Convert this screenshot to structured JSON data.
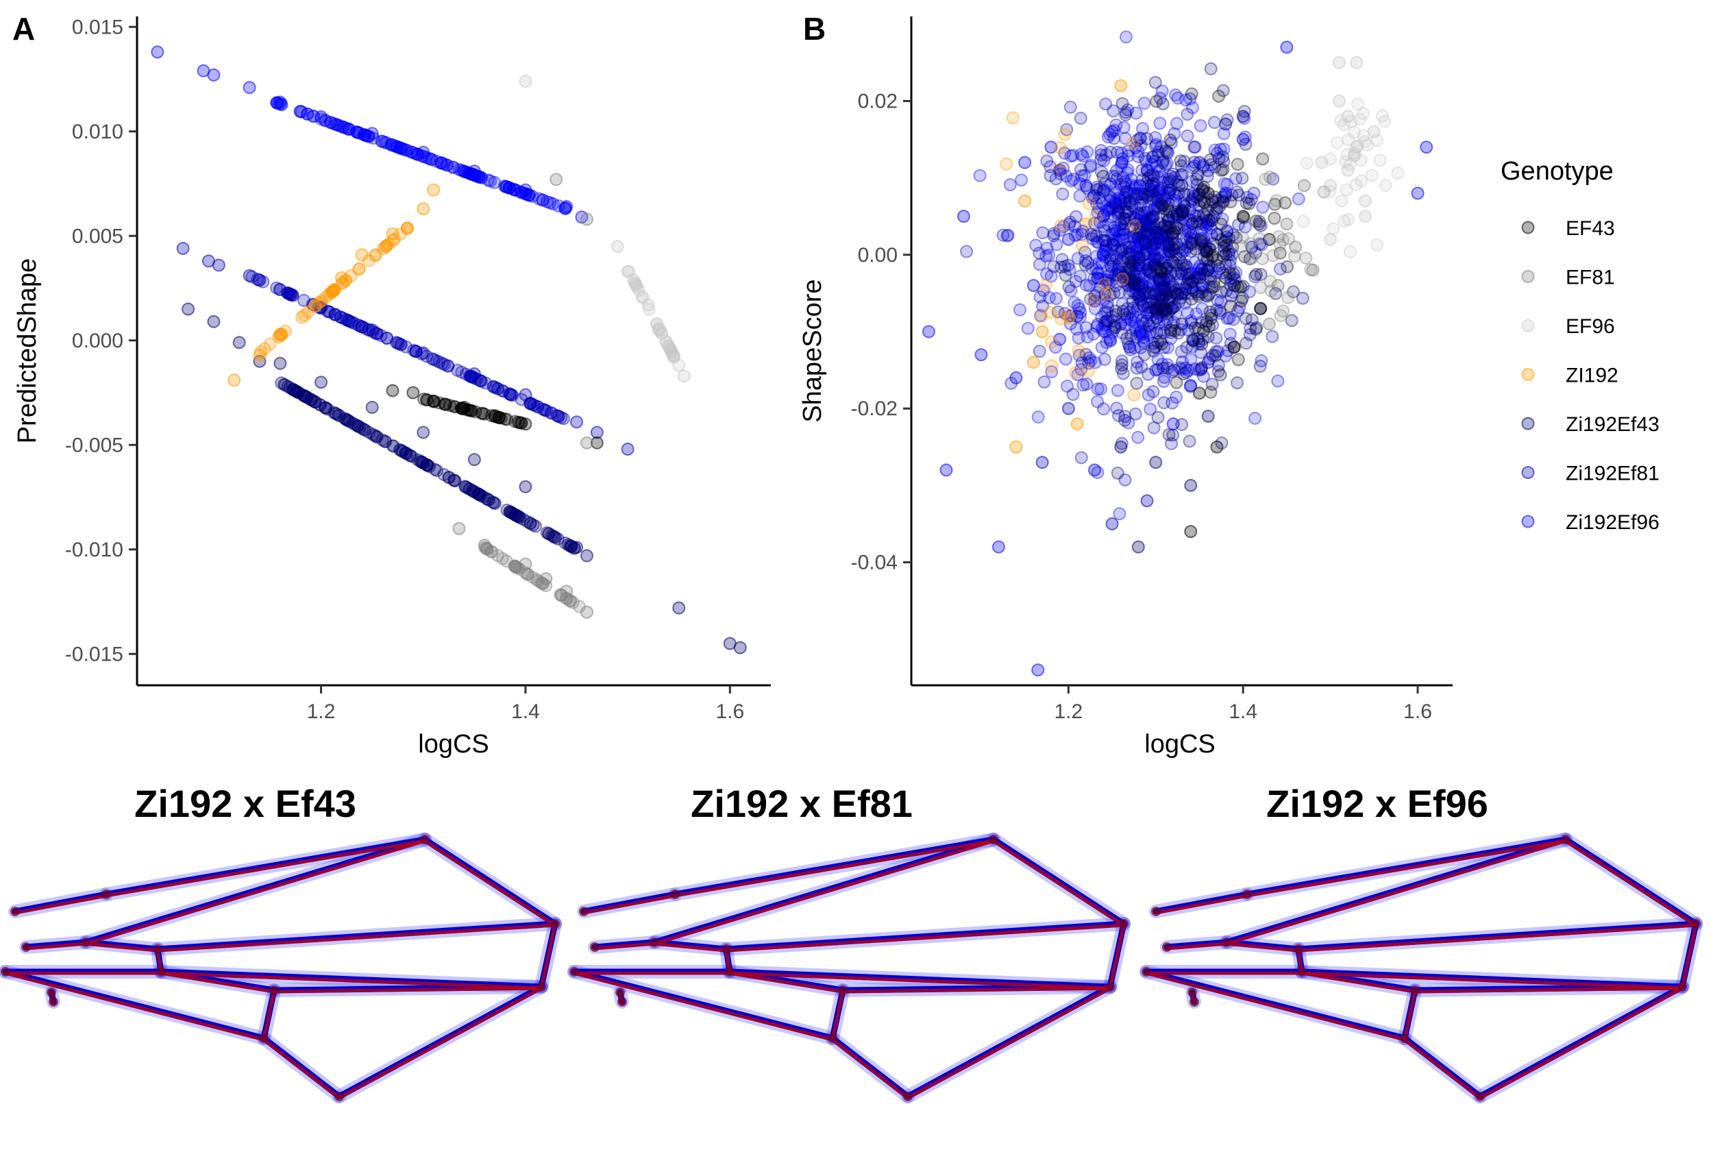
{
  "panel_labels": {
    "a": "A",
    "b": "B"
  },
  "legend": {
    "title": "Genotype",
    "items": [
      {
        "label": "EF43",
        "color": "#000000"
      },
      {
        "label": "EF81",
        "color": "#808080"
      },
      {
        "label": "EF96",
        "color": "#c8c8c8"
      },
      {
        "label": "ZI192",
        "color": "#ff9900"
      },
      {
        "label": "Zi192Ef43",
        "color": "#00006e"
      },
      {
        "label": "Zi192Ef81",
        "color": "#0000b4"
      },
      {
        "label": "Zi192Ef96",
        "color": "#0000ff"
      }
    ]
  },
  "wing_titles": [
    "Zi192 x Ef43",
    "Zi192 x Ef81",
    "Zi192 x Ef96"
  ],
  "chart_data": [
    {
      "panel": "A",
      "type": "scatter",
      "xlabel": "logCS",
      "ylabel": "PredictedShape",
      "xlim": [
        1.02,
        1.64
      ],
      "ylim": [
        -0.0165,
        0.0155
      ],
      "xticks": [
        1.2,
        1.4,
        1.6
      ],
      "xtick_labels": [
        "1.2",
        "1.4",
        "1.6"
      ],
      "yticks": [
        -0.015,
        -0.01,
        -0.005,
        0,
        0.005,
        0.01,
        0.015
      ],
      "ytick_labels": [
        "-0.015",
        "-0.010",
        "-0.005",
        "0.000",
        "0.005",
        "0.010",
        "0.015"
      ],
      "series": [
        {
          "name": "Zi192Ef96",
          "color": "#0000ff",
          "points": [
            [
              1.04,
              0.0138
            ],
            [
              1.085,
              0.0129
            ],
            [
              1.095,
              0.0127
            ],
            [
              1.13,
              0.0121
            ],
            [
              1.16,
              0.0114
            ],
            [
              1.2,
              0.0107
            ],
            [
              1.25,
              0.0099
            ],
            [
              1.3,
              0.009
            ],
            [
              1.35,
              0.0081
            ],
            [
              1.4,
              0.0072
            ],
            [
              1.44,
              0.0064
            ],
            [
              1.455,
              0.0059
            ]
          ]
        },
        {
          "name": "Zi192Ef81",
          "color": "#0000b4",
          "points": [
            [
              1.065,
              0.0044
            ],
            [
              1.09,
              0.0038
            ],
            [
              1.1,
              0.0036
            ],
            [
              1.13,
              0.0031
            ],
            [
              1.17,
              0.0022
            ],
            [
              1.2,
              0.0016
            ],
            [
              1.25,
              0.0005
            ],
            [
              1.3,
              -0.0006
            ],
            [
              1.35,
              -0.0016
            ],
            [
              1.4,
              -0.0026
            ],
            [
              1.45,
              -0.0039
            ],
            [
              1.47,
              -0.0044
            ],
            [
              1.5,
              -0.0052
            ]
          ]
        },
        {
          "name": "Zi192Ef43",
          "color": "#00006e",
          "points": [
            [
              1.07,
              0.0015
            ],
            [
              1.095,
              0.0009
            ],
            [
              1.12,
              -0.0001
            ],
            [
              1.14,
              -0.001
            ],
            [
              1.16,
              -0.0011
            ],
            [
              1.2,
              -0.002
            ],
            [
              1.25,
              -0.0032
            ],
            [
              1.3,
              -0.0044
            ],
            [
              1.35,
              -0.0057
            ],
            [
              1.4,
              -0.007
            ],
            [
              1.45,
              -0.0099
            ],
            [
              1.46,
              -0.0103
            ],
            [
              1.55,
              -0.0128
            ],
            [
              1.6,
              -0.0145
            ],
            [
              1.61,
              -0.0147
            ]
          ]
        },
        {
          "name": "ZI192",
          "color": "#ff9900",
          "points": [
            [
              1.115,
              -0.0019
            ],
            [
              1.14,
              -0.0007
            ],
            [
              1.16,
              0.0003
            ],
            [
              1.2,
              0.0018
            ],
            [
              1.22,
              0.003
            ],
            [
              1.24,
              0.0041
            ],
            [
              1.27,
              0.0051
            ],
            [
              1.3,
              0.0063
            ],
            [
              1.31,
              0.0072
            ]
          ]
        },
        {
          "name": "EF43",
          "color": "#000000",
          "points": [
            [
              1.27,
              -0.0024
            ],
            [
              1.29,
              -0.0025
            ],
            [
              1.31,
              -0.0029
            ],
            [
              1.34,
              -0.0032
            ],
            [
              1.37,
              -0.0036
            ],
            [
              1.4,
              -0.004
            ],
            [
              1.47,
              -0.0049
            ]
          ]
        },
        {
          "name": "EF81",
          "color": "#808080",
          "points": [
            [
              1.335,
              -0.009
            ],
            [
              1.36,
              -0.0098
            ],
            [
              1.4,
              -0.0107
            ],
            [
              1.42,
              -0.0114
            ],
            [
              1.44,
              -0.012
            ],
            [
              1.46,
              -0.013
            ],
            [
              1.43,
              0.0077
            ],
            [
              1.46,
              0.0058
            ],
            [
              1.46,
              -0.0049
            ]
          ]
        },
        {
          "name": "EF96",
          "color": "#c8c8c8",
          "points": [
            [
              1.4,
              0.0124
            ],
            [
              1.49,
              0.0045
            ],
            [
              1.5,
              0.0033
            ],
            [
              1.52,
              0.0017
            ],
            [
              1.53,
              0.0005
            ],
            [
              1.545,
              -0.0008
            ],
            [
              1.555,
              -0.0017
            ]
          ]
        }
      ]
    },
    {
      "panel": "B",
      "type": "scatter",
      "xlabel": "logCS",
      "ylabel": "ShapeScore",
      "xlim": [
        1.02,
        1.64
      ],
      "ylim": [
        -0.056,
        0.031
      ],
      "xticks": [
        1.2,
        1.4,
        1.6
      ],
      "xtick_labels": [
        "1.2",
        "1.4",
        "1.6"
      ],
      "yticks": [
        -0.04,
        -0.02,
        0,
        0.02
      ],
      "ytick_labels": [
        "-0.04",
        "-0.02",
        "0.00",
        "0.02"
      ],
      "series": [
        {
          "name": "Zi192Ef96",
          "color": "#0000ff",
          "points": [
            [
              1.27,
              0.001
            ],
            [
              1.26,
              0.004
            ],
            [
              1.29,
              -0.002
            ],
            [
              1.25,
              0.006
            ],
            [
              1.3,
              0.003
            ],
            [
              1.28,
              -0.004
            ],
            [
              1.24,
              0.0
            ],
            [
              1.31,
              -0.001
            ],
            [
              1.27,
              0.008
            ],
            [
              1.23,
              -0.006
            ],
            [
              1.32,
              0.005
            ],
            [
              1.29,
              0.011
            ],
            [
              1.22,
              0.009
            ],
            [
              1.33,
              -0.005
            ],
            [
              1.26,
              -0.009
            ],
            [
              1.2,
              0.002
            ],
            [
              1.35,
              0.012
            ],
            [
              1.19,
              -0.011
            ],
            [
              1.36,
              -0.014
            ],
            [
              1.18,
              0.014
            ],
            [
              1.3,
              -0.015
            ],
            [
              1.25,
              0.016
            ],
            [
              1.16,
              -0.004
            ],
            [
              1.38,
              0.008
            ],
            [
              1.4,
              0.015
            ],
            [
              1.15,
              0.012
            ],
            [
              1.32,
              -0.022
            ],
            [
              1.14,
              -0.016
            ],
            [
              1.45,
              0.027
            ],
            [
              1.08,
              0.005
            ],
            [
              1.1,
              -0.013
            ],
            [
              1.04,
              -0.01
            ],
            [
              1.06,
              -0.028
            ],
            [
              1.12,
              -0.038
            ],
            [
              1.165,
              -0.054
            ],
            [
              1.61,
              0.014
            ],
            [
              1.6,
              0.008
            ]
          ]
        },
        {
          "name": "Zi192Ef81",
          "color": "#0000b4",
          "points": [
            [
              1.28,
              0.002
            ],
            [
              1.3,
              -0.006
            ],
            [
              1.24,
              0.005
            ],
            [
              1.33,
              0.009
            ],
            [
              1.21,
              -0.008
            ],
            [
              1.36,
              0.004
            ],
            [
              1.27,
              -0.012
            ],
            [
              1.19,
              0.011
            ],
            [
              1.34,
              -0.017
            ],
            [
              1.2,
              -0.02
            ],
            [
              1.23,
              -0.028
            ],
            [
              1.29,
              -0.032
            ],
            [
              1.25,
              -0.035
            ],
            [
              1.41,
              0.001
            ],
            [
              1.17,
              -0.027
            ]
          ]
        },
        {
          "name": "Zi192Ef43",
          "color": "#00006e",
          "points": [
            [
              1.31,
              0.003
            ],
            [
              1.35,
              -0.003
            ],
            [
              1.37,
              0.006
            ],
            [
              1.33,
              -0.009
            ],
            [
              1.39,
              -0.004
            ],
            [
              1.38,
              0.017
            ],
            [
              1.4,
              0.018
            ],
            [
              1.36,
              -0.021
            ],
            [
              1.3,
              -0.027
            ],
            [
              1.26,
              -0.025
            ],
            [
              1.34,
              -0.03
            ],
            [
              1.42,
              -0.007
            ],
            [
              1.28,
              -0.038
            ]
          ]
        },
        {
          "name": "ZI192",
          "color": "#ff9900",
          "points": [
            [
              1.15,
              0.007
            ],
            [
              1.17,
              -0.01
            ],
            [
              1.19,
              0.011
            ],
            [
              1.21,
              -0.022
            ],
            [
              1.22,
              0.004
            ],
            [
              1.16,
              -0.014
            ],
            [
              1.14,
              -0.025
            ],
            [
              1.26,
              0.022
            ],
            [
              1.2,
              -0.008
            ]
          ]
        },
        {
          "name": "EF43",
          "color": "#000000",
          "points": [
            [
              1.36,
              0.008
            ],
            [
              1.38,
              -0.003
            ],
            [
              1.4,
              0.005
            ],
            [
              1.42,
              -0.007
            ],
            [
              1.35,
              -0.018
            ],
            [
              1.37,
              -0.025
            ],
            [
              1.39,
              -0.012
            ],
            [
              1.43,
              0.002
            ],
            [
              1.34,
              -0.036
            ]
          ]
        },
        {
          "name": "EF81",
          "color": "#808080",
          "points": [
            [
              1.45,
              0.004
            ],
            [
              1.44,
              -0.004
            ],
            [
              1.47,
              0.009
            ],
            [
              1.43,
              -0.009
            ],
            [
              1.46,
              0.001
            ],
            [
              1.48,
              -0.002
            ]
          ]
        },
        {
          "name": "EF96",
          "color": "#c8c8c8",
          "points": [
            [
              1.51,
              0.02
            ],
            [
              1.52,
              0.011
            ],
            [
              1.53,
              0.014
            ],
            [
              1.54,
              0.007
            ],
            [
              1.5,
              0.009
            ],
            [
              1.55,
              0.016
            ],
            [
              1.53,
              0.025
            ],
            [
              1.51,
              0.025
            ],
            [
              1.54,
              0.005
            ],
            [
              1.5,
              0.002
            ],
            [
              1.52,
              0.018
            ],
            [
              1.49,
              0.012
            ]
          ]
        }
      ]
    }
  ]
}
